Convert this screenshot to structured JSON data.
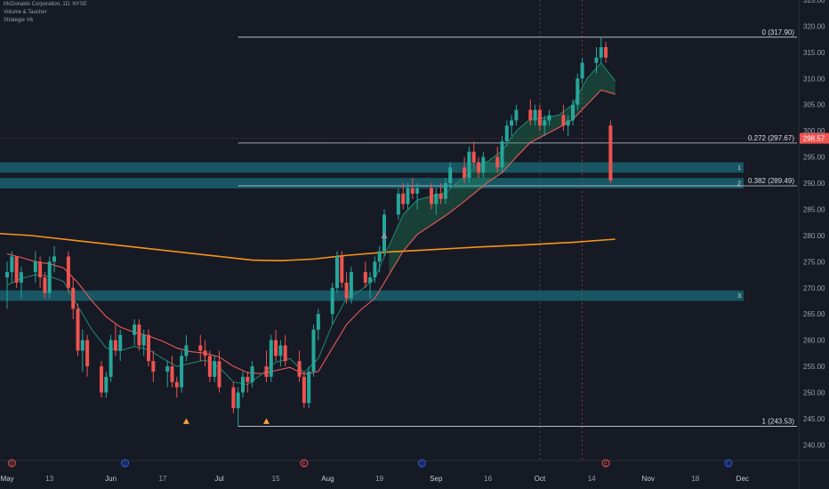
{
  "header": {
    "symbol_line": "McDonalds Corporation, 1D, NYSE",
    "indicator_1": "Volume & Taucher",
    "indicator_2": "Strategie V6"
  },
  "colors": {
    "background": "#161a25",
    "bull": "#26a69a",
    "bear": "#ef5350",
    "ema_fast": "#1f8a70",
    "ema_slow": "#e85a5a",
    "ma_long": "#f7931a",
    "zone": "#1a6b78",
    "axis_text": "#9aa0ad",
    "current_price_bg": "#ef5350"
  },
  "chart_data": {
    "type": "candlestick",
    "title": "McDonalds Corporation, 1D, NYSE",
    "ylim": [
      237,
      325
    ],
    "y_ticks": [
      240,
      245,
      250,
      255,
      260,
      265,
      270,
      275,
      280,
      285,
      290,
      295,
      300,
      305,
      310,
      315,
      320,
      325
    ],
    "x_ticks": [
      "May",
      "13",
      "Jun",
      "17",
      "Jul",
      "15",
      "Aug",
      "19",
      "Sep",
      "16",
      "Oct",
      "14",
      "Nov",
      "18",
      "Dec"
    ],
    "x_tick_days": [
      0,
      9,
      22,
      33,
      45,
      57,
      68,
      79,
      91,
      102,
      113,
      124,
      136,
      146,
      156
    ],
    "last_day": 170,
    "current_price": "298.57",
    "candles": [
      [
        0,
        272,
        275,
        266,
        273
      ],
      [
        1,
        273,
        277,
        271,
        276
      ],
      [
        2,
        276,
        276,
        270,
        271
      ],
      [
        3,
        271,
        274,
        268,
        273
      ],
      [
        6,
        273,
        277,
        271,
        275
      ],
      [
        7,
        275,
        276,
        270,
        272
      ],
      [
        8,
        272,
        273,
        268,
        269
      ],
      [
        9,
        269,
        276,
        268,
        275
      ],
      [
        10,
        275,
        278,
        273,
        276
      ],
      [
        13,
        276,
        277,
        269,
        270
      ],
      [
        14,
        270,
        272,
        264,
        266
      ],
      [
        15,
        266,
        267,
        257,
        258
      ],
      [
        16,
        258,
        262,
        254,
        260
      ],
      [
        17,
        260,
        261,
        253,
        255
      ],
      [
        20,
        255,
        256,
        249,
        250
      ],
      [
        21,
        250,
        254,
        249,
        253
      ],
      [
        22,
        253,
        261,
        252,
        260
      ],
      [
        23,
        260,
        263,
        257,
        258
      ],
      [
        24,
        258,
        262,
        256,
        261
      ],
      [
        27,
        261,
        264,
        259,
        263
      ],
      [
        28,
        263,
        264,
        258,
        259
      ],
      [
        29,
        259,
        262,
        257,
        261
      ],
      [
        30,
        261,
        262,
        255,
        256
      ],
      [
        31,
        256,
        258,
        252,
        254
      ],
      [
        34,
        254,
        256,
        251,
        255
      ],
      [
        35,
        255,
        257,
        251,
        252
      ],
      [
        36,
        252,
        253,
        249,
        251
      ],
      [
        37,
        251,
        258,
        250,
        257
      ],
      [
        38,
        257,
        261,
        256,
        259
      ],
      [
        41,
        259,
        261,
        256,
        258
      ],
      [
        42,
        258,
        260,
        255,
        257
      ],
      [
        43,
        257,
        258,
        252,
        253
      ],
      [
        44,
        253,
        257,
        252,
        256
      ],
      [
        45,
        256,
        258,
        250,
        251
      ],
      [
        48,
        251,
        252,
        246,
        247
      ],
      [
        49,
        247,
        251,
        243.5,
        250
      ],
      [
        50,
        250,
        254,
        249,
        253
      ],
      [
        51,
        253,
        254,
        250,
        252
      ],
      [
        52,
        252,
        256,
        251,
        255
      ],
      [
        55,
        255,
        258,
        252,
        253
      ],
      [
        56,
        253,
        261,
        252,
        260
      ],
      [
        57,
        260,
        262,
        256,
        257
      ],
      [
        58,
        257,
        260,
        255,
        259
      ],
      [
        59,
        259,
        261,
        255,
        256
      ],
      [
        62,
        256,
        258,
        252,
        253
      ],
      [
        63,
        253,
        254,
        247,
        248
      ],
      [
        64,
        248,
        255,
        247,
        254
      ],
      [
        65,
        254,
        263,
        253,
        262
      ],
      [
        66,
        262,
        266,
        260,
        265
      ],
      [
        69,
        265,
        271,
        263,
        270
      ],
      [
        70,
        270,
        277,
        269,
        276
      ],
      [
        71,
        276,
        277,
        270,
        271
      ],
      [
        72,
        271,
        273,
        267,
        268
      ],
      [
        73,
        268,
        274,
        267,
        273
      ],
      [
        76,
        273,
        275,
        270,
        271
      ],
      [
        77,
        271,
        273,
        268,
        272
      ],
      [
        78,
        272,
        276,
        271,
        275
      ],
      [
        79,
        275,
        278,
        273,
        277
      ],
      [
        80,
        277,
        285,
        276,
        284
      ],
      [
        83,
        284,
        289,
        283,
        288
      ],
      [
        84,
        288,
        290,
        285,
        286
      ],
      [
        85,
        286,
        290,
        285,
        289
      ],
      [
        86,
        289,
        291,
        287,
        288
      ],
      [
        87,
        288,
        290,
        285,
        289
      ],
      [
        90,
        289,
        290,
        285,
        286
      ],
      [
        91,
        286,
        289,
        284,
        288
      ],
      [
        92,
        288,
        290,
        286,
        287
      ],
      [
        93,
        287,
        291,
        286,
        290
      ],
      [
        94,
        290,
        294,
        289,
        293
      ],
      [
        97,
        293,
        295,
        290,
        291
      ],
      [
        98,
        291,
        297,
        290,
        296
      ],
      [
        99,
        296,
        298,
        293,
        294
      ],
      [
        100,
        294,
        295,
        291,
        292
      ],
      [
        101,
        292,
        296,
        291,
        295
      ],
      [
        104,
        295,
        297,
        292,
        293
      ],
      [
        105,
        293,
        299,
        292,
        298
      ],
      [
        106,
        298,
        302,
        297,
        301
      ],
      [
        107,
        301,
        303,
        299,
        302
      ],
      [
        108,
        302,
        305,
        301,
        304
      ],
      [
        111,
        304,
        306,
        301,
        302
      ],
      [
        112,
        302,
        305,
        301,
        304
      ],
      [
        113,
        304,
        305,
        300,
        301
      ],
      [
        114,
        301,
        303,
        299,
        302
      ],
      [
        115,
        302,
        304,
        301,
        303
      ],
      [
        118,
        303,
        305,
        300,
        301
      ],
      [
        119,
        301,
        303,
        299,
        302
      ],
      [
        120,
        302,
        306,
        301,
        305
      ],
      [
        121,
        305,
        311,
        304,
        310
      ],
      [
        122,
        310,
        314,
        309,
        313
      ],
      [
        125,
        313,
        316,
        311,
        314
      ],
      [
        126,
        314,
        317.9,
        313,
        316
      ],
      [
        127,
        316,
        317,
        313,
        314
      ],
      [
        128,
        301,
        302,
        290,
        290.5
      ]
    ],
    "ema_fast": [
      [
        0,
        270.5
      ],
      [
        3,
        271.8
      ],
      [
        6,
        272.5
      ],
      [
        9,
        272.2
      ],
      [
        12,
        271.2
      ],
      [
        15,
        266.5
      ],
      [
        18,
        262.0
      ],
      [
        21,
        258.5
      ],
      [
        24,
        258.0
      ],
      [
        27,
        258.8
      ],
      [
        30,
        258.2
      ],
      [
        33,
        256.5
      ],
      [
        36,
        255.0
      ],
      [
        39,
        255.6
      ],
      [
        42,
        256.2
      ],
      [
        45,
        254.8
      ],
      [
        48,
        252.0
      ],
      [
        51,
        251.5
      ],
      [
        54,
        253.5
      ],
      [
        57,
        255.8
      ],
      [
        60,
        256.5
      ],
      [
        63,
        253.8
      ],
      [
        66,
        256.5
      ],
      [
        69,
        263.0
      ],
      [
        72,
        268.0
      ],
      [
        75,
        269.5
      ],
      [
        78,
        271.8
      ],
      [
        81,
        278.0
      ],
      [
        84,
        284.0
      ],
      [
        87,
        286.8
      ],
      [
        90,
        287.5
      ],
      [
        93,
        288.2
      ],
      [
        96,
        290.5
      ],
      [
        99,
        292.8
      ],
      [
        102,
        294.2
      ],
      [
        105,
        296.2
      ],
      [
        108,
        300.0
      ],
      [
        111,
        302.3
      ],
      [
        114,
        302.5
      ],
      [
        117,
        303.0
      ],
      [
        120,
        305.0
      ],
      [
        123,
        310.0
      ],
      [
        126,
        313.0
      ],
      [
        129,
        309.5
      ]
    ],
    "ema_slow": [
      [
        0,
        276.5
      ],
      [
        3,
        275.8
      ],
      [
        6,
        275.0
      ],
      [
        9,
        274.6
      ],
      [
        12,
        273.8
      ],
      [
        15,
        271.0
      ],
      [
        18,
        267.5
      ],
      [
        21,
        264.5
      ],
      [
        24,
        262.5
      ],
      [
        27,
        261.5
      ],
      [
        30,
        260.8
      ],
      [
        33,
        259.8
      ],
      [
        36,
        258.5
      ],
      [
        39,
        257.8
      ],
      [
        42,
        257.5
      ],
      [
        45,
        256.8
      ],
      [
        48,
        255.0
      ],
      [
        51,
        253.8
      ],
      [
        54,
        253.6
      ],
      [
        57,
        254.2
      ],
      [
        60,
        254.8
      ],
      [
        63,
        253.5
      ],
      [
        66,
        254.0
      ],
      [
        69,
        258.5
      ],
      [
        72,
        263.0
      ],
      [
        75,
        265.8
      ],
      [
        78,
        268.0
      ],
      [
        81,
        272.5
      ],
      [
        84,
        277.0
      ],
      [
        87,
        280.2
      ],
      [
        90,
        282.0
      ],
      [
        93,
        283.8
      ],
      [
        96,
        285.8
      ],
      [
        99,
        288.0
      ],
      [
        102,
        290.2
      ],
      [
        105,
        292.0
      ],
      [
        108,
        295.0
      ],
      [
        111,
        297.8
      ],
      [
        114,
        299.2
      ],
      [
        117,
        300.6
      ],
      [
        120,
        302.2
      ],
      [
        123,
        305.0
      ],
      [
        126,
        307.8
      ],
      [
        129,
        307.0
      ]
    ],
    "ma_long": [
      [
        -4,
        280.5
      ],
      [
        5,
        280.0
      ],
      [
        15,
        279.0
      ],
      [
        25,
        278.0
      ],
      [
        35,
        277.0
      ],
      [
        45,
        276.0
      ],
      [
        52,
        275.3
      ],
      [
        58,
        275.2
      ],
      [
        65,
        275.5
      ],
      [
        72,
        276.2
      ],
      [
        80,
        276.8
      ],
      [
        90,
        277.3
      ],
      [
        100,
        277.8
      ],
      [
        110,
        278.2
      ],
      [
        120,
        278.7
      ],
      [
        129,
        279.3
      ]
    ],
    "fibonacci": [
      {
        "label": "0 (317.90)",
        "price": 317.9
      },
      {
        "label": "0.272 (297.67)",
        "price": 297.67
      },
      {
        "label": "0.382 (289.49)",
        "price": 289.49
      },
      {
        "label": "1 (243.53)",
        "price": 243.53
      }
    ],
    "fib_start_day": 49,
    "zones": [
      {
        "label": "1",
        "low": 292.0,
        "high": 294.0
      },
      {
        "label": "2",
        "low": 289.0,
        "high": 291.0
      },
      {
        "label": "3",
        "low": 267.5,
        "high": 269.5
      }
    ],
    "triangle_markers": [
      {
        "day": 38,
        "price": 244.5,
        "direction": "up"
      },
      {
        "day": 55,
        "price": 244.5,
        "direction": "up"
      },
      {
        "day": 80,
        "price": 280.0,
        "direction": "up"
      }
    ],
    "vertical_marker_days": [
      113,
      122
    ],
    "event_icons": [
      {
        "day": 1,
        "label": "D",
        "color": "#ef5350"
      },
      {
        "day": 25,
        "label": "D",
        "color": "#2962ff"
      },
      {
        "day": 63,
        "label": "E",
        "color": "#ef5350"
      },
      {
        "day": 88,
        "label": "D",
        "color": "#2962ff"
      },
      {
        "day": 127,
        "label": "E",
        "color": "#ef5350"
      },
      {
        "day": 153,
        "label": "D",
        "color": "#2962ff"
      }
    ]
  }
}
